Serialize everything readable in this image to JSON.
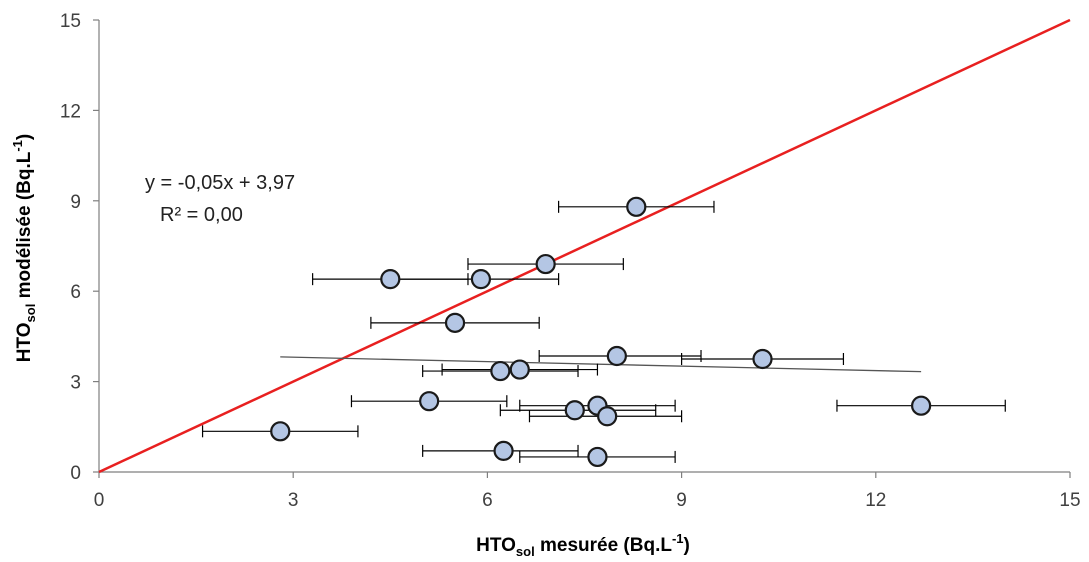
{
  "chart_data": {
    "type": "scatter",
    "title": "",
    "xlabel": {
      "main": "HTO",
      "sub": "sol",
      "rest": " mesurée (Bq.L",
      "sup": "-1",
      "end": ")"
    },
    "ylabel": {
      "main": "HTO",
      "sub": "sol",
      "rest": " modélisée (Bq.L",
      "sup": "-1",
      "end": ")"
    },
    "xlim": [
      0,
      15
    ],
    "ylim": [
      0,
      15
    ],
    "xticks": [
      "0",
      "3",
      "6",
      "9",
      "12",
      "15"
    ],
    "yticks": [
      "0",
      "3",
      "6",
      "9",
      "12",
      "15"
    ],
    "grid": false,
    "points": [
      {
        "x": 2.8,
        "y": 1.35,
        "xerr_lo": 1.6,
        "xerr_hi": 4.0
      },
      {
        "x": 4.5,
        "y": 6.4,
        "xerr_lo": 3.3,
        "xerr_hi": 5.7
      },
      {
        "x": 5.1,
        "y": 2.35,
        "xerr_lo": 3.9,
        "xerr_hi": 6.3
      },
      {
        "x": 5.5,
        "y": 4.95,
        "xerr_lo": 4.2,
        "xerr_hi": 6.8
      },
      {
        "x": 5.9,
        "y": 6.4,
        "xerr_lo": 4.6,
        "xerr_hi": 7.1
      },
      {
        "x": 6.2,
        "y": 3.35,
        "xerr_lo": 5.0,
        "xerr_hi": 7.4
      },
      {
        "x": 6.25,
        "y": 0.7,
        "xerr_lo": 5.0,
        "xerr_hi": 7.4
      },
      {
        "x": 6.5,
        "y": 3.4,
        "xerr_lo": 5.3,
        "xerr_hi": 7.7
      },
      {
        "x": 6.9,
        "y": 6.9,
        "xerr_lo": 5.7,
        "xerr_hi": 8.1
      },
      {
        "x": 7.35,
        "y": 2.05,
        "xerr_lo": 6.2,
        "xerr_hi": 8.6
      },
      {
        "x": 7.7,
        "y": 2.2,
        "xerr_lo": 6.5,
        "xerr_hi": 8.9
      },
      {
        "x": 7.7,
        "y": 0.5,
        "xerr_lo": 6.5,
        "xerr_hi": 8.9
      },
      {
        "x": 7.85,
        "y": 1.85,
        "xerr_lo": 6.65,
        "xerr_hi": 9.0
      },
      {
        "x": 8.0,
        "y": 3.85,
        "xerr_lo": 6.8,
        "xerr_hi": 9.3
      },
      {
        "x": 8.3,
        "y": 8.8,
        "xerr_lo": 7.1,
        "xerr_hi": 9.5
      },
      {
        "x": 10.25,
        "y": 3.75,
        "xerr_lo": 9.0,
        "xerr_hi": 11.5
      },
      {
        "x": 12.7,
        "y": 2.2,
        "xerr_lo": 11.4,
        "xerr_hi": 14.0
      }
    ],
    "identity_line": {
      "from": [
        0,
        0
      ],
      "to": [
        15,
        15
      ],
      "color": "#e82020"
    },
    "trendline": {
      "from": [
        2.8,
        3.82
      ],
      "to": [
        12.7,
        3.33
      ],
      "color": "#555555"
    },
    "equation": "y = -0,05x + 3,97",
    "r2": "R² = 0,00",
    "marker_fill": "#b4c6e4",
    "marker_stroke": "#1a1a1a"
  }
}
